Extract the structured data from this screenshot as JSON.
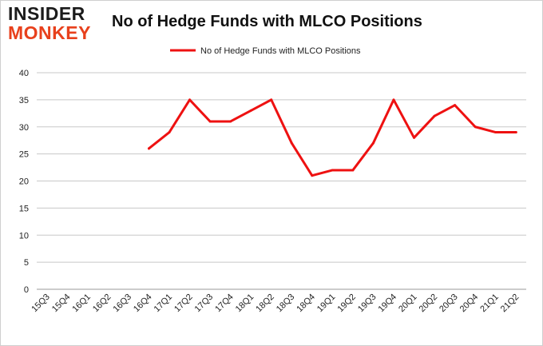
{
  "logo": {
    "line1": "INSIDER",
    "line2": "MONKEY"
  },
  "chart_data": {
    "type": "line",
    "title": "No of Hedge Funds with MLCO Positions",
    "xlabel": "",
    "ylabel": "",
    "categories": [
      "15Q3",
      "15Q4",
      "16Q1",
      "16Q2",
      "16Q3",
      "16Q4",
      "17Q1",
      "17Q2",
      "17Q3",
      "17Q4",
      "18Q1",
      "18Q2",
      "18Q3",
      "18Q4",
      "19Q1",
      "19Q2",
      "19Q3",
      "19Q4",
      "20Q1",
      "20Q2",
      "20Q3",
      "20Q4",
      "21Q1",
      "21Q2"
    ],
    "series": [
      {
        "name": "No of Hedge Funds with MLCO Positions",
        "color": "#ee1111",
        "values": [
          null,
          null,
          null,
          null,
          null,
          26,
          29,
          35,
          31,
          31,
          33,
          35,
          27,
          21,
          22,
          22,
          27,
          35,
          28,
          32,
          34,
          30,
          29,
          29
        ]
      }
    ],
    "ylim": [
      0,
      40
    ],
    "yticks": [
      0,
      5,
      10,
      15,
      20,
      25,
      30,
      35,
      40
    ],
    "grid": true,
    "legend_position": "top-center"
  }
}
